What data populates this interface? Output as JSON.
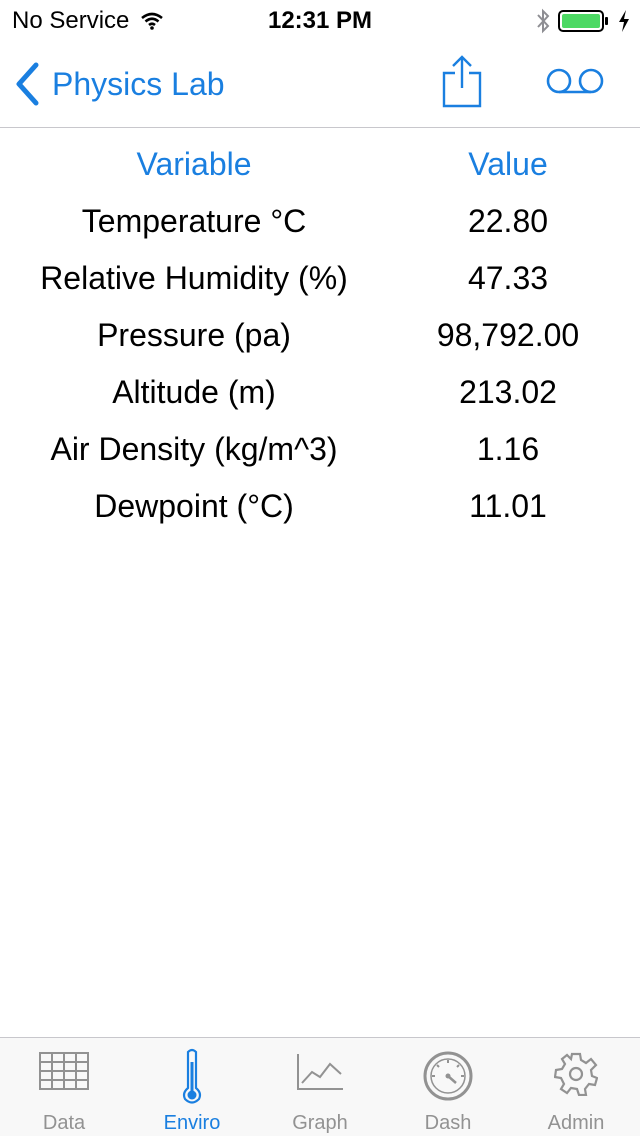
{
  "status_bar": {
    "carrier": "No Service",
    "time": "12:31 PM"
  },
  "nav": {
    "back_label": "Physics Lab"
  },
  "table": {
    "headers": [
      "Variable",
      "Value"
    ],
    "rows": [
      {
        "variable": "Temperature °C",
        "value": "22.80"
      },
      {
        "variable": "Relative Humidity (%)",
        "value": "47.33"
      },
      {
        "variable": "Pressure (pa)",
        "value": "98,792.00"
      },
      {
        "variable": "Altitude (m)",
        "value": "213.02"
      },
      {
        "variable": "Air Density (kg/m^3)",
        "value": "1.16"
      },
      {
        "variable": "Dewpoint (°C)",
        "value": "11.01"
      }
    ]
  },
  "tabs": [
    {
      "label": "Data",
      "icon": "table-icon",
      "active": false
    },
    {
      "label": "Enviro",
      "icon": "thermometer-icon",
      "active": true
    },
    {
      "label": "Graph",
      "icon": "line-chart-icon",
      "active": false
    },
    {
      "label": "Dash",
      "icon": "gauge-icon",
      "active": false
    },
    {
      "label": "Admin",
      "icon": "gear-icon",
      "active": false
    }
  ],
  "colors": {
    "accent": "#1a7fe0",
    "inactive": "#929292",
    "battery": "#4cd964"
  }
}
